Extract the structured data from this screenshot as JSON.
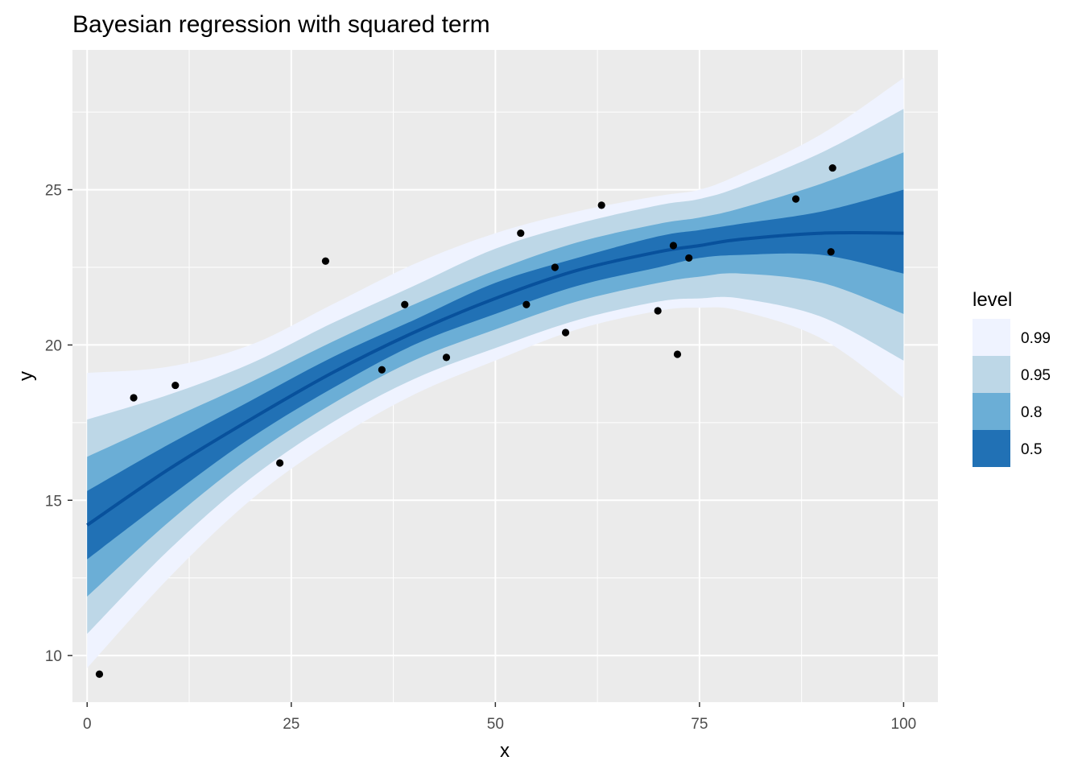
{
  "chart_data": {
    "type": "area",
    "title": "Bayesian regression with squared term",
    "xlabel": "x",
    "ylabel": "y",
    "xlim": [
      -1.8,
      104.2
    ],
    "ylim": [
      8.5,
      29.5
    ],
    "x_ticks": [
      0,
      25,
      50,
      75,
      100
    ],
    "y_ticks": [
      10,
      15,
      20,
      25
    ],
    "grid": true,
    "legend": {
      "title": "level",
      "position": "right",
      "entries": [
        {
          "label": "0.99",
          "color": "#eff3ff"
        },
        {
          "label": "0.95",
          "color": "#bdd7e7"
        },
        {
          "label": "0.8",
          "color": "#6baed6"
        },
        {
          "label": "0.5",
          "color": "#2171b5"
        }
      ]
    },
    "median_color": "#08519c",
    "point_color": "#000000",
    "panel_background": "#ebebeb",
    "bands": [
      {
        "level": "0.99",
        "color": "#eff3ff",
        "x": [
          0,
          10,
          20,
          30,
          40,
          50,
          60,
          70,
          75,
          80,
          90,
          100
        ],
        "lower": [
          9.6,
          12.5,
          15.0,
          16.9,
          18.4,
          19.5,
          20.5,
          21.1,
          21.2,
          21.1,
          20.2,
          18.3
        ],
        "upper": [
          19.1,
          19.3,
          20.0,
          21.3,
          22.6,
          23.6,
          24.3,
          24.8,
          25.0,
          25.5,
          26.8,
          28.6
        ]
      },
      {
        "level": "0.95",
        "color": "#bdd7e7",
        "x": [
          0,
          10,
          20,
          30,
          40,
          50,
          60,
          70,
          75,
          80,
          90,
          100
        ],
        "lower": [
          10.7,
          13.4,
          15.7,
          17.5,
          18.9,
          19.9,
          20.8,
          21.4,
          21.5,
          21.5,
          20.9,
          19.5
        ],
        "upper": [
          17.6,
          18.4,
          19.4,
          20.7,
          21.9,
          23.1,
          23.9,
          24.5,
          24.7,
          25.1,
          26.2,
          27.6
        ]
      },
      {
        "level": "0.8",
        "color": "#6baed6",
        "x": [
          0,
          10,
          20,
          30,
          40,
          50,
          60,
          70,
          75,
          80,
          90,
          100
        ],
        "lower": [
          11.9,
          14.3,
          16.4,
          18.1,
          19.5,
          20.5,
          21.4,
          22.0,
          22.2,
          22.3,
          22.0,
          21.0
        ],
        "upper": [
          16.4,
          17.6,
          18.8,
          20.1,
          21.3,
          22.4,
          23.3,
          23.9,
          24.1,
          24.4,
          25.2,
          26.2
        ]
      },
      {
        "level": "0.5",
        "color": "#2171b5",
        "x": [
          0,
          10,
          20,
          30,
          40,
          50,
          60,
          70,
          75,
          80,
          90,
          100
        ],
        "lower": [
          13.1,
          15.1,
          17.0,
          18.6,
          20.0,
          21.0,
          21.9,
          22.5,
          22.8,
          22.9,
          22.9,
          22.3
        ],
        "upper": [
          15.3,
          16.8,
          18.2,
          19.6,
          20.8,
          22.0,
          22.8,
          23.5,
          23.7,
          23.9,
          24.3,
          25.0
        ]
      }
    ],
    "median": {
      "x": [
        0,
        10,
        20,
        30,
        40,
        50,
        60,
        70,
        75,
        80,
        90,
        100
      ],
      "y": [
        14.2,
        16.0,
        17.6,
        19.1,
        20.4,
        21.5,
        22.4,
        23.0,
        23.2,
        23.4,
        23.6,
        23.6
      ]
    },
    "points": [
      {
        "x": 1.5,
        "y": 9.4
      },
      {
        "x": 5.7,
        "y": 18.3
      },
      {
        "x": 10.8,
        "y": 18.7
      },
      {
        "x": 23.6,
        "y": 16.2
      },
      {
        "x": 29.2,
        "y": 22.7
      },
      {
        "x": 36.1,
        "y": 19.2
      },
      {
        "x": 38.9,
        "y": 21.3
      },
      {
        "x": 44.0,
        "y": 19.6
      },
      {
        "x": 53.1,
        "y": 23.6
      },
      {
        "x": 53.8,
        "y": 21.3
      },
      {
        "x": 57.3,
        "y": 22.5
      },
      {
        "x": 58.6,
        "y": 20.4
      },
      {
        "x": 63.0,
        "y": 24.5
      },
      {
        "x": 69.9,
        "y": 21.1
      },
      {
        "x": 71.8,
        "y": 23.2
      },
      {
        "x": 72.3,
        "y": 19.7
      },
      {
        "x": 73.7,
        "y": 22.8
      },
      {
        "x": 86.8,
        "y": 24.7
      },
      {
        "x": 91.1,
        "y": 23.0
      },
      {
        "x": 91.3,
        "y": 25.7
      }
    ]
  }
}
